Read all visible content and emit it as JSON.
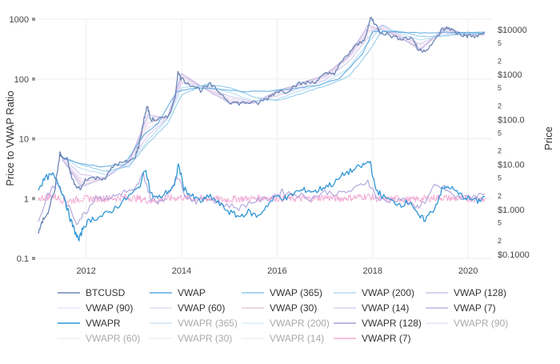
{
  "chart_data": {
    "type": "line",
    "title": "",
    "ylabel_left": "Price to VWAP Ratio",
    "ylabel_right": "Price",
    "x_range": [
      2011.0,
      2020.5
    ],
    "x_ticks": [
      "2012",
      "2014",
      "2016",
      "2018",
      "2020"
    ],
    "x_tick_values": [
      2012,
      2014,
      2016,
      2018,
      2020
    ],
    "left_axis": {
      "scale": "log",
      "range": [
        0.1,
        1000
      ],
      "ticks": [
        "0.1",
        "1",
        "10",
        "100",
        "1000"
      ],
      "tick_values": [
        0.1,
        1,
        10,
        100,
        1000
      ]
    },
    "right_axis": {
      "scale": "log",
      "range": [
        0.1,
        20000
      ],
      "ticks": [
        "$0.1000",
        "$1.000",
        "$10.00",
        "$100.0",
        "$1000",
        "$10000"
      ],
      "tick_values": [
        0.1,
        1,
        10,
        100,
        1000,
        10000
      ],
      "minor_labels": [
        "2",
        "5"
      ]
    },
    "grid": true,
    "legend_position": "bottom",
    "price_axis_series": [
      "BTCUSD",
      "VWAP",
      "VWAP (365)",
      "VWAP (200)",
      "VWAP (128)",
      "VWAP (90)",
      "VWAP (60)",
      "VWAP (30)",
      "VWAP (14)",
      "VWAP (7)"
    ],
    "series": [
      {
        "name": "BTCUSD",
        "color": "#6b85b5",
        "axis": "right",
        "visible": true,
        "x": [
          2011.0,
          2011.1,
          2011.2,
          2011.35,
          2011.45,
          2011.5,
          2011.6,
          2011.7,
          2011.8,
          2011.9,
          2012.0,
          2012.2,
          2012.4,
          2012.6,
          2012.8,
          2013.0,
          2013.1,
          2013.2,
          2013.28,
          2013.35,
          2013.5,
          2013.7,
          2013.85,
          2013.92,
          2014.0,
          2014.2,
          2014.4,
          2014.6,
          2014.8,
          2015.0,
          2015.2,
          2015.4,
          2015.6,
          2015.8,
          2016.0,
          2016.2,
          2016.4,
          2016.6,
          2016.8,
          2017.0,
          2017.2,
          2017.4,
          2017.6,
          2017.8,
          2017.9,
          2017.96,
          2018.05,
          2018.15,
          2018.3,
          2018.5,
          2018.7,
          2018.85,
          2018.95,
          2019.1,
          2019.3,
          2019.45,
          2019.6,
          2019.75,
          2019.9,
          2020.0,
          2020.2,
          2020.35
        ],
        "y": [
          0.3,
          0.6,
          0.9,
          3,
          18,
          14,
          13,
          5,
          3,
          3,
          5,
          5,
          5,
          10,
          11,
          13,
          25,
          90,
          200,
          100,
          100,
          110,
          250,
          1100,
          800,
          600,
          450,
          600,
          400,
          250,
          230,
          240,
          230,
          300,
          430,
          420,
          600,
          650,
          700,
          1000,
          1100,
          2200,
          4000,
          5500,
          10000,
          19000,
          13500,
          9000,
          8000,
          6500,
          6500,
          6300,
          3500,
          3500,
          5500,
          10000,
          11000,
          8500,
          7500,
          7200,
          7000,
          9000
        ]
      },
      {
        "name": "VWAP",
        "color": "#5aa8e0",
        "axis": "right",
        "visible": true,
        "x": [
          2011.5,
          2011.8,
          2012.3,
          2012.8,
          2013.2,
          2013.5,
          2013.9,
          2014.3,
          2014.8,
          2015.3,
          2015.8,
          2016.3,
          2016.8,
          2017.3,
          2017.8,
          2018.0,
          2018.5,
          2019.0,
          2019.5,
          2020.0,
          2020.35
        ],
        "y": [
          14,
          11,
          9,
          10,
          45,
          80,
          420,
          500,
          480,
          420,
          430,
          480,
          560,
          800,
          3000,
          9000,
          8800,
          8500,
          8700,
          8600,
          8600
        ]
      },
      {
        "name": "VWAP (365)",
        "color": "#8ec8ea",
        "axis": "right",
        "visible": true,
        "x": [
          2011.5,
          2011.9,
          2012.4,
          2012.9,
          2013.3,
          2013.7,
          2014.0,
          2014.5,
          2015.0,
          2015.5,
          2016.0,
          2016.5,
          2017.0,
          2017.5,
          2017.9,
          2018.2,
          2018.6,
          2019.0,
          2019.5,
          2020.0,
          2020.35
        ],
        "y": [
          15,
          10,
          7,
          9,
          30,
          80,
          350,
          600,
          520,
          320,
          260,
          380,
          560,
          900,
          3000,
          9500,
          9000,
          7000,
          7200,
          8000,
          8300
        ]
      },
      {
        "name": "VWAP (200)",
        "color": "#b2daf2",
        "axis": "right",
        "visible": true,
        "x": [
          2011.5,
          2011.9,
          2012.4,
          2012.9,
          2013.3,
          2013.7,
          2014.0,
          2014.5,
          2015.0,
          2015.5,
          2016.0,
          2016.5,
          2017.0,
          2017.5,
          2017.9,
          2018.2,
          2018.6,
          2019.0,
          2019.5,
          2020.0,
          2020.35
        ],
        "y": [
          15,
          8,
          6,
          10,
          35,
          100,
          500,
          580,
          400,
          260,
          280,
          450,
          640,
          1400,
          5000,
          12500,
          8000,
          5800,
          7500,
          8500,
          8100
        ]
      },
      {
        "name": "VWAP (128)",
        "color": "#cfc6ec",
        "axis": "right",
        "visible": true,
        "x": [
          2011.5,
          2011.9,
          2012.4,
          2012.9,
          2013.3,
          2013.7,
          2014.0,
          2014.5,
          2015.0,
          2015.5,
          2016.0,
          2016.5,
          2017.0,
          2017.5,
          2017.9,
          2018.2,
          2018.6,
          2019.0,
          2019.5,
          2020.0,
          2020.35
        ],
        "y": [
          14,
          6,
          5,
          11,
          45,
          105,
          650,
          560,
          330,
          245,
          330,
          520,
          750,
          1900,
          6500,
          13000,
          7200,
          4800,
          8300,
          8500,
          7800
        ]
      },
      {
        "name": "VWAP (90)",
        "color": "#ece6f6",
        "axis": "right",
        "visible": true,
        "x": [
          2011.5,
          2011.9,
          2012.4,
          2012.9,
          2013.3,
          2013.7,
          2014.0,
          2014.5,
          2015.0,
          2015.5,
          2016.0,
          2016.5,
          2017.0,
          2017.5,
          2017.9,
          2018.2,
          2018.6,
          2019.0,
          2019.5,
          2020.0,
          2020.35
        ],
        "y": [
          13,
          5,
          5,
          12,
          55,
          110,
          700,
          540,
          300,
          240,
          360,
          560,
          800,
          2200,
          7500,
          12500,
          6900,
          4400,
          8800,
          8300,
          7700
        ]
      },
      {
        "name": "VWAP (60)",
        "color": "#e4def3",
        "axis": "right",
        "visible": true,
        "x": [
          2011.5,
          2011.9,
          2012.4,
          2012.9,
          2013.3,
          2013.7,
          2014.0,
          2014.5,
          2015.0,
          2015.5,
          2016.0,
          2016.5,
          2017.0,
          2017.5,
          2017.9,
          2018.2,
          2018.6,
          2019.0,
          2019.5,
          2020.0,
          2020.35
        ],
        "y": [
          13,
          4.5,
          5,
          12,
          65,
          110,
          800,
          520,
          280,
          235,
          390,
          600,
          850,
          2400,
          8500,
          12000,
          6700,
          4000,
          9200,
          8100,
          7600
        ]
      },
      {
        "name": "VWAP (30)",
        "color": "#e9c9de",
        "axis": "right",
        "visible": true,
        "x": [
          2011.5,
          2011.9,
          2012.4,
          2012.9,
          2013.3,
          2013.7,
          2014.0,
          2014.5,
          2015.0,
          2015.5,
          2016.0,
          2016.5,
          2017.0,
          2017.5,
          2017.9,
          2018.2,
          2018.6,
          2019.0,
          2019.5,
          2020.0,
          2020.35
        ],
        "y": [
          13,
          4,
          5,
          12,
          85,
          110,
          900,
          500,
          260,
          235,
          410,
          630,
          900,
          2500,
          9500,
          11000,
          6500,
          3700,
          9800,
          7900,
          7600
        ]
      },
      {
        "name": "VWAP (14)",
        "color": "#d8d0ee",
        "axis": "right",
        "visible": true,
        "x": [
          2011.5,
          2011.9,
          2012.4,
          2012.9,
          2013.3,
          2013.7,
          2014.0,
          2014.5,
          2015.0,
          2015.5,
          2016.0,
          2016.5,
          2017.0,
          2017.5,
          2017.9,
          2018.2,
          2018.6,
          2019.0,
          2019.5,
          2020.0,
          2020.35
        ],
        "y": [
          13,
          3.5,
          5,
          12,
          110,
          110,
          1000,
          480,
          240,
          235,
          420,
          640,
          950,
          2600,
          11000,
          10000,
          6400,
          3600,
          10500,
          7700,
          7800
        ]
      },
      {
        "name": "VWAP (7)",
        "color": "#c2b4e6",
        "axis": "right",
        "visible": true,
        "x": [
          2011.5,
          2011.9,
          2012.4,
          2012.9,
          2013.3,
          2013.7,
          2014.0,
          2014.5,
          2015.0,
          2015.5,
          2016.0,
          2016.5,
          2017.0,
          2017.5,
          2017.9,
          2018.2,
          2018.6,
          2019.0,
          2019.5,
          2020.0,
          2020.35
        ],
        "y": [
          13,
          3.2,
          5,
          12,
          130,
          105,
          1050,
          470,
          235,
          235,
          430,
          650,
          980,
          2650,
          12500,
          9800,
          6400,
          3500,
          11000,
          7600,
          8100
        ]
      },
      {
        "name": "VWAPR",
        "color": "#2f95d6",
        "axis": "left",
        "visible": true,
        "x": [
          2011.0,
          2011.15,
          2011.3,
          2011.45,
          2011.55,
          2011.65,
          2011.75,
          2011.85,
          2011.95,
          2012.1,
          2012.3,
          2012.5,
          2012.7,
          2012.9,
          2013.1,
          2013.25,
          2013.35,
          2013.5,
          2013.7,
          2013.85,
          2013.93,
          2014.05,
          2014.2,
          2014.4,
          2014.6,
          2014.8,
          2015.0,
          2015.2,
          2015.4,
          2015.6,
          2015.8,
          2016.0,
          2016.2,
          2016.4,
          2016.6,
          2016.8,
          2017.0,
          2017.2,
          2017.4,
          2017.6,
          2017.8,
          2017.95,
          2018.05,
          2018.2,
          2018.4,
          2018.6,
          2018.8,
          2018.95,
          2019.1,
          2019.3,
          2019.45,
          2019.6,
          2019.8,
          2020.0,
          2020.2,
          2020.35
        ],
        "y": [
          1.5,
          2.2,
          2.5,
          1.6,
          1.0,
          0.5,
          0.3,
          0.2,
          0.35,
          0.45,
          0.5,
          0.6,
          0.8,
          1.1,
          1.5,
          3.2,
          1.2,
          1.0,
          1.3,
          1.6,
          3.8,
          1.5,
          1.1,
          0.9,
          1.1,
          0.8,
          0.6,
          0.5,
          0.6,
          0.5,
          0.8,
          1.1,
          1.0,
          1.3,
          1.4,
          1.3,
          1.6,
          1.8,
          2.6,
          3.0,
          3.6,
          4.2,
          1.5,
          1.1,
          0.9,
          0.8,
          0.9,
          0.5,
          0.45,
          0.7,
          1.4,
          1.6,
          1.2,
          1.0,
          0.9,
          1.1
        ]
      },
      {
        "name": "VWAPR (365)",
        "color": "#9bd0ec",
        "axis": "left",
        "visible": false
      },
      {
        "name": "VWAPR (200)",
        "color": "#b7dcf2",
        "axis": "left",
        "visible": false
      },
      {
        "name": "VWAPR (128)",
        "color": "#a89bd8",
        "axis": "left",
        "visible": true,
        "x": [
          2011.0,
          2011.2,
          2011.4,
          2011.6,
          2011.8,
          2012.0,
          2012.2,
          2012.4,
          2012.6,
          2012.8,
          2013.0,
          2013.2,
          2013.35,
          2013.5,
          2013.7,
          2013.9,
          2014.1,
          2014.3,
          2014.6,
          2014.9,
          2015.2,
          2015.5,
          2015.8,
          2016.1,
          2016.4,
          2016.7,
          2017.0,
          2017.3,
          2017.6,
          2017.9,
          2018.1,
          2018.3,
          2018.6,
          2018.9,
          2019.1,
          2019.3,
          2019.5,
          2019.7,
          2019.9,
          2020.1,
          2020.35
        ],
        "y": [
          0.4,
          1.2,
          1.8,
          0.8,
          0.4,
          0.6,
          1.1,
          1.0,
          1.1,
          1.3,
          1.3,
          2.6,
          1.0,
          0.9,
          1.1,
          2.4,
          1.1,
          0.9,
          1.0,
          0.8,
          0.7,
          0.9,
          1.0,
          1.3,
          1.2,
          1.0,
          1.3,
          1.2,
          1.4,
          2.0,
          1.0,
          0.9,
          1.0,
          0.7,
          0.9,
          1.6,
          1.5,
          1.1,
          1.0,
          1.1,
          1.2
        ]
      },
      {
        "name": "VWAPR (90)",
        "color": "#cfc6ec",
        "axis": "left",
        "visible": false
      },
      {
        "name": "VWAPR (60)",
        "color": "#e4def3",
        "axis": "left",
        "visible": false
      },
      {
        "name": "VWAPR (30)",
        "color": "#ecdcea",
        "axis": "left",
        "visible": false
      },
      {
        "name": "VWAPR (14)",
        "color": "#e6dcf0",
        "axis": "left",
        "visible": false
      },
      {
        "name": "VWAPR (7)",
        "color": "#f4a8d4",
        "axis": "left",
        "visible": true,
        "noise": true,
        "x": [
          2011.0,
          2011.3,
          2011.6,
          2011.9,
          2012.2,
          2012.5,
          2012.8,
          2013.1,
          2013.4,
          2013.7,
          2014.0,
          2014.3,
          2014.6,
          2014.9,
          2015.2,
          2015.5,
          2015.8,
          2016.1,
          2016.4,
          2016.7,
          2017.0,
          2017.3,
          2017.6,
          2017.9,
          2018.2,
          2018.5,
          2018.8,
          2019.1,
          2019.4,
          2019.7,
          2020.0,
          2020.35
        ],
        "y": [
          1.0,
          1.1,
          0.9,
          1.0,
          1.0,
          1.0,
          1.05,
          1.0,
          0.9,
          1.0,
          1.05,
          1.0,
          1.0,
          0.95,
          1.0,
          1.0,
          1.05,
          1.0,
          1.0,
          1.0,
          1.05,
          1.0,
          1.05,
          1.1,
          0.95,
          1.0,
          0.95,
          1.0,
          1.05,
          1.0,
          1.0,
          1.0
        ]
      }
    ]
  }
}
